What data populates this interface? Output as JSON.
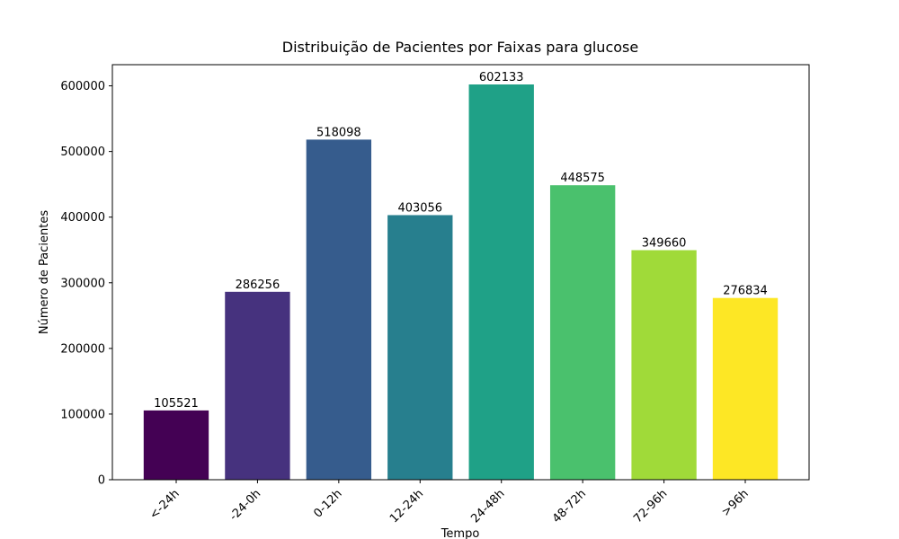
{
  "chart_data": {
    "type": "bar",
    "title": "Distribuição de Pacientes por Faixas para glucose",
    "xlabel": "Tempo",
    "ylabel": "Número de Pacientes",
    "categories": [
      "<-24h",
      "-24-0h",
      "0-12h",
      "12-24h",
      "24-48h",
      "48-72h",
      "72-96h",
      ">96h"
    ],
    "values": [
      105521,
      286256,
      518098,
      403056,
      602133,
      448575,
      349660,
      276834
    ],
    "colors": [
      "#440154",
      "#46327e",
      "#365c8d",
      "#277f8e",
      "#1fa187",
      "#4ac16d",
      "#a0da39",
      "#fde725"
    ],
    "ylim": [
      0,
      632240
    ],
    "yticks": [
      0,
      100000,
      200000,
      300000,
      400000,
      500000,
      600000
    ]
  }
}
